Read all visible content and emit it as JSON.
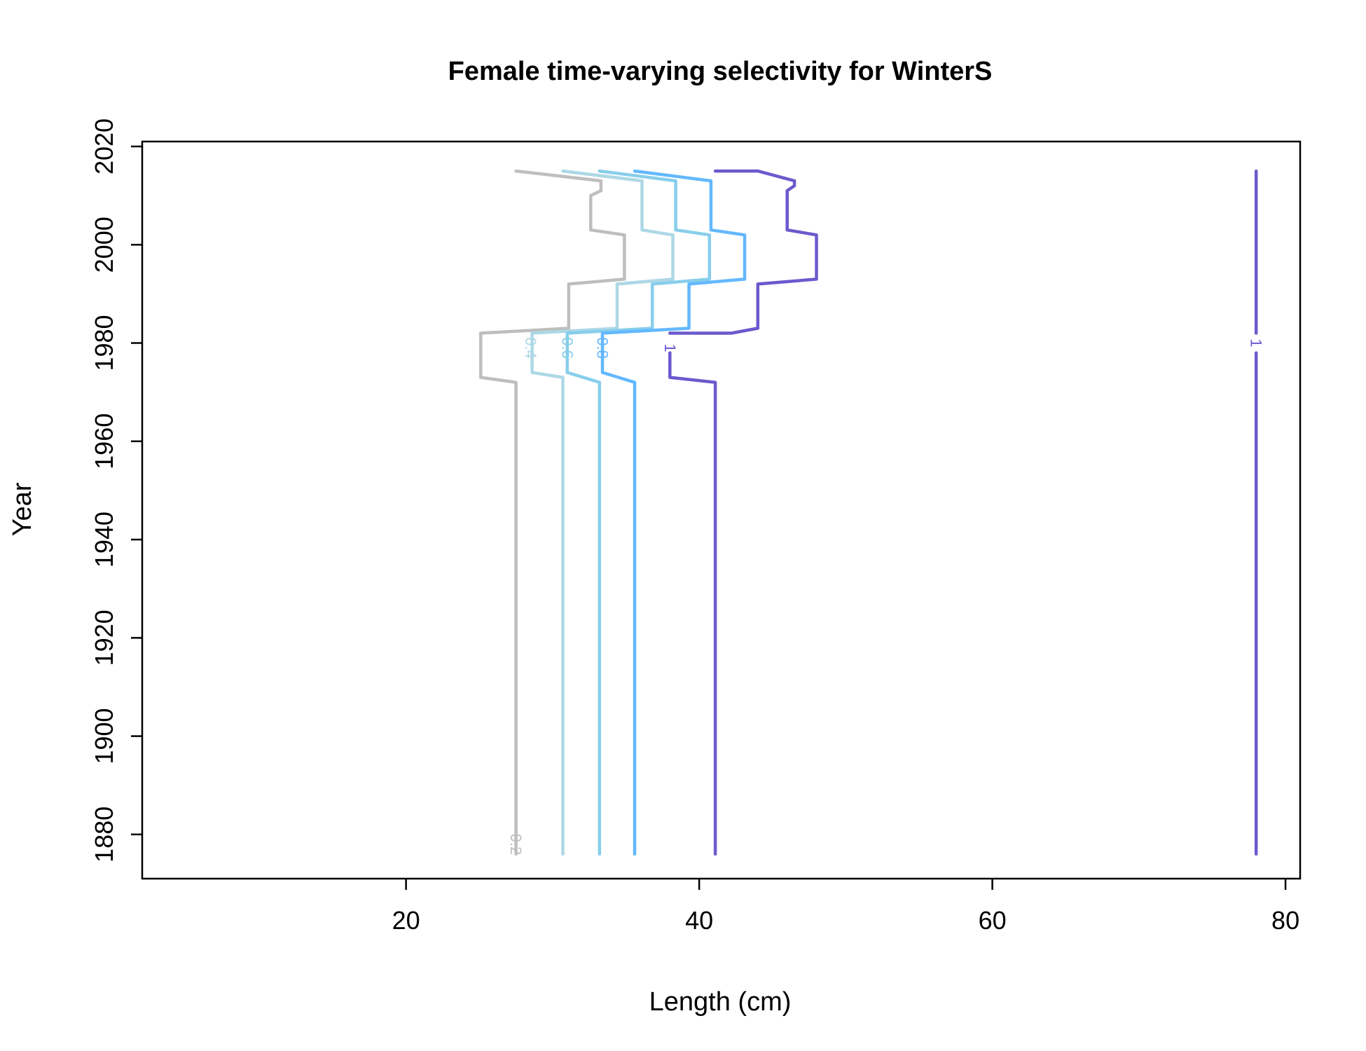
{
  "chart_data": {
    "type": "line",
    "title": "Female time-varying selectivity for WinterS",
    "xlabel": "Length (cm)",
    "ylabel": "Year",
    "xlim": [
      2,
      81
    ],
    "ylim": [
      1871,
      2021
    ],
    "x_ticks": [
      20,
      40,
      60,
      80
    ],
    "y_ticks": [
      1880,
      1900,
      1920,
      1940,
      1960,
      1980,
      2000,
      2020
    ],
    "grid": false,
    "legend": "none",
    "series": [
      {
        "label": "0.2",
        "color": "#bebebe",
        "label_at": [
          27.5,
          1878
        ],
        "points": [
          [
            27.5,
            1876
          ],
          [
            27.5,
            1972
          ],
          [
            25.1,
            1973
          ],
          [
            25.1,
            1982
          ],
          [
            31.1,
            1983
          ],
          [
            31.1,
            1992
          ],
          [
            34.9,
            1993
          ],
          [
            34.9,
            2002
          ],
          [
            32.6,
            2003
          ],
          [
            32.6,
            2010
          ],
          [
            33.3,
            2011
          ],
          [
            33.3,
            2013
          ],
          [
            27.5,
            2015
          ]
        ]
      },
      {
        "label": "0.4",
        "color": "#add8e6",
        "label_at": [
          28.5,
          1979
        ],
        "points": [
          [
            30.7,
            1876
          ],
          [
            30.7,
            1973
          ],
          [
            28.6,
            1974
          ],
          [
            28.6,
            1982
          ],
          [
            34.4,
            1983
          ],
          [
            34.4,
            1992
          ],
          [
            38.2,
            1993
          ],
          [
            38.2,
            2002
          ],
          [
            36.1,
            2003
          ],
          [
            36.1,
            2013
          ],
          [
            30.7,
            2015
          ]
        ]
      },
      {
        "label": "0.6",
        "color": "#87ceeb",
        "label_at": [
          31.0,
          1979
        ],
        "points": [
          [
            33.2,
            1876
          ],
          [
            33.2,
            1972
          ],
          [
            31.0,
            1974
          ],
          [
            31.0,
            1982
          ],
          [
            36.8,
            1983
          ],
          [
            36.8,
            1992
          ],
          [
            40.7,
            1993
          ],
          [
            40.7,
            2002
          ],
          [
            38.4,
            2003
          ],
          [
            38.4,
            2013
          ],
          [
            33.2,
            2015
          ]
        ]
      },
      {
        "label": "0.8",
        "color": "#63b8ff",
        "label_at": [
          33.4,
          1979
        ],
        "points": [
          [
            35.6,
            1876
          ],
          [
            35.6,
            1972
          ],
          [
            33.4,
            1974
          ],
          [
            33.4,
            1982
          ],
          [
            39.3,
            1983
          ],
          [
            39.3,
            1992
          ],
          [
            43.1,
            1993
          ],
          [
            43.1,
            2002
          ],
          [
            40.8,
            2003
          ],
          [
            40.8,
            2013
          ],
          [
            35.6,
            2015
          ]
        ]
      },
      {
        "label": "1",
        "color": "#6a5acd",
        "label_at": [
          38.0,
          1979
        ],
        "points": [
          [
            41.1,
            1876
          ],
          [
            41.1,
            1972
          ],
          [
            38.0,
            1973
          ],
          [
            38.0,
            1978
          ]
        ]
      },
      {
        "label": "",
        "color": "#6a5acd",
        "points": [
          [
            38.0,
            1982
          ],
          [
            42.2,
            1982
          ],
          [
            44.0,
            1983
          ],
          [
            44.0,
            1992
          ],
          [
            48.0,
            1993
          ],
          [
            48.0,
            2002
          ],
          [
            46.0,
            2003
          ],
          [
            46.0,
            2011
          ],
          [
            46.5,
            2012
          ],
          [
            46.5,
            2013
          ],
          [
            44.0,
            2015
          ],
          [
            41.1,
            2015
          ]
        ]
      },
      {
        "label": "1",
        "color": "#6a5acd",
        "label_at": [
          78.0,
          1980
        ],
        "points": [
          [
            78.0,
            1876
          ],
          [
            78.0,
            1978
          ]
        ]
      },
      {
        "label": "",
        "color": "#6a5acd",
        "points": [
          [
            78.0,
            1982
          ],
          [
            78.0,
            2015
          ]
        ]
      }
    ]
  }
}
